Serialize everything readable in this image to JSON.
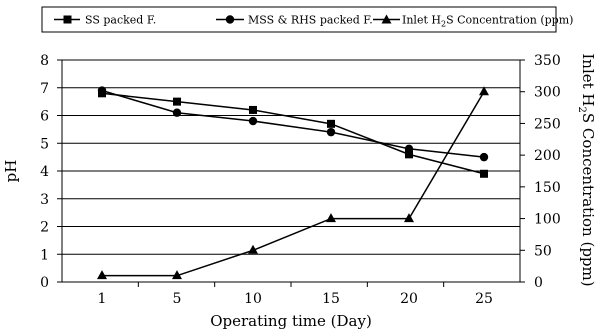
{
  "chart_data": {
    "type": "line",
    "categories": [
      "1",
      "5",
      "10",
      "15",
      "20",
      "25"
    ],
    "xlabel": "Operating time (Day)",
    "ylabel": "pH",
    "y2label_prefix": "Inlet H",
    "y2label_sub": "2",
    "y2label_suffix": "S Concentration (ppm)",
    "ylim": [
      0,
      8
    ],
    "y2lim": [
      0,
      350
    ],
    "yticks": [
      "0",
      "1",
      "2",
      "3",
      "4",
      "5",
      "6",
      "7",
      "8"
    ],
    "y2ticks": [
      "0",
      "50",
      "100",
      "150",
      "200",
      "250",
      "300",
      "350"
    ],
    "grid": "horizontal",
    "legend_position": "top",
    "series": [
      {
        "name": "SS packed F.",
        "axis": "left",
        "marker": "square",
        "values": [
          6.8,
          6.5,
          6.2,
          5.7,
          4.6,
          3.9
        ]
      },
      {
        "name": "MSS & RHS packed F.",
        "axis": "left",
        "marker": "circle",
        "values": [
          6.9,
          6.1,
          5.8,
          5.4,
          4.8,
          4.5
        ]
      },
      {
        "name_prefix": "Inlet H",
        "name_sub": "2",
        "name_suffix": "S Concentration (ppm)",
        "axis": "right",
        "marker": "triangle",
        "values": [
          10,
          10,
          50,
          100,
          100,
          300
        ]
      }
    ],
    "colors": {
      "line": "#000000",
      "grid": "#000000",
      "background": "#ffffff"
    }
  }
}
